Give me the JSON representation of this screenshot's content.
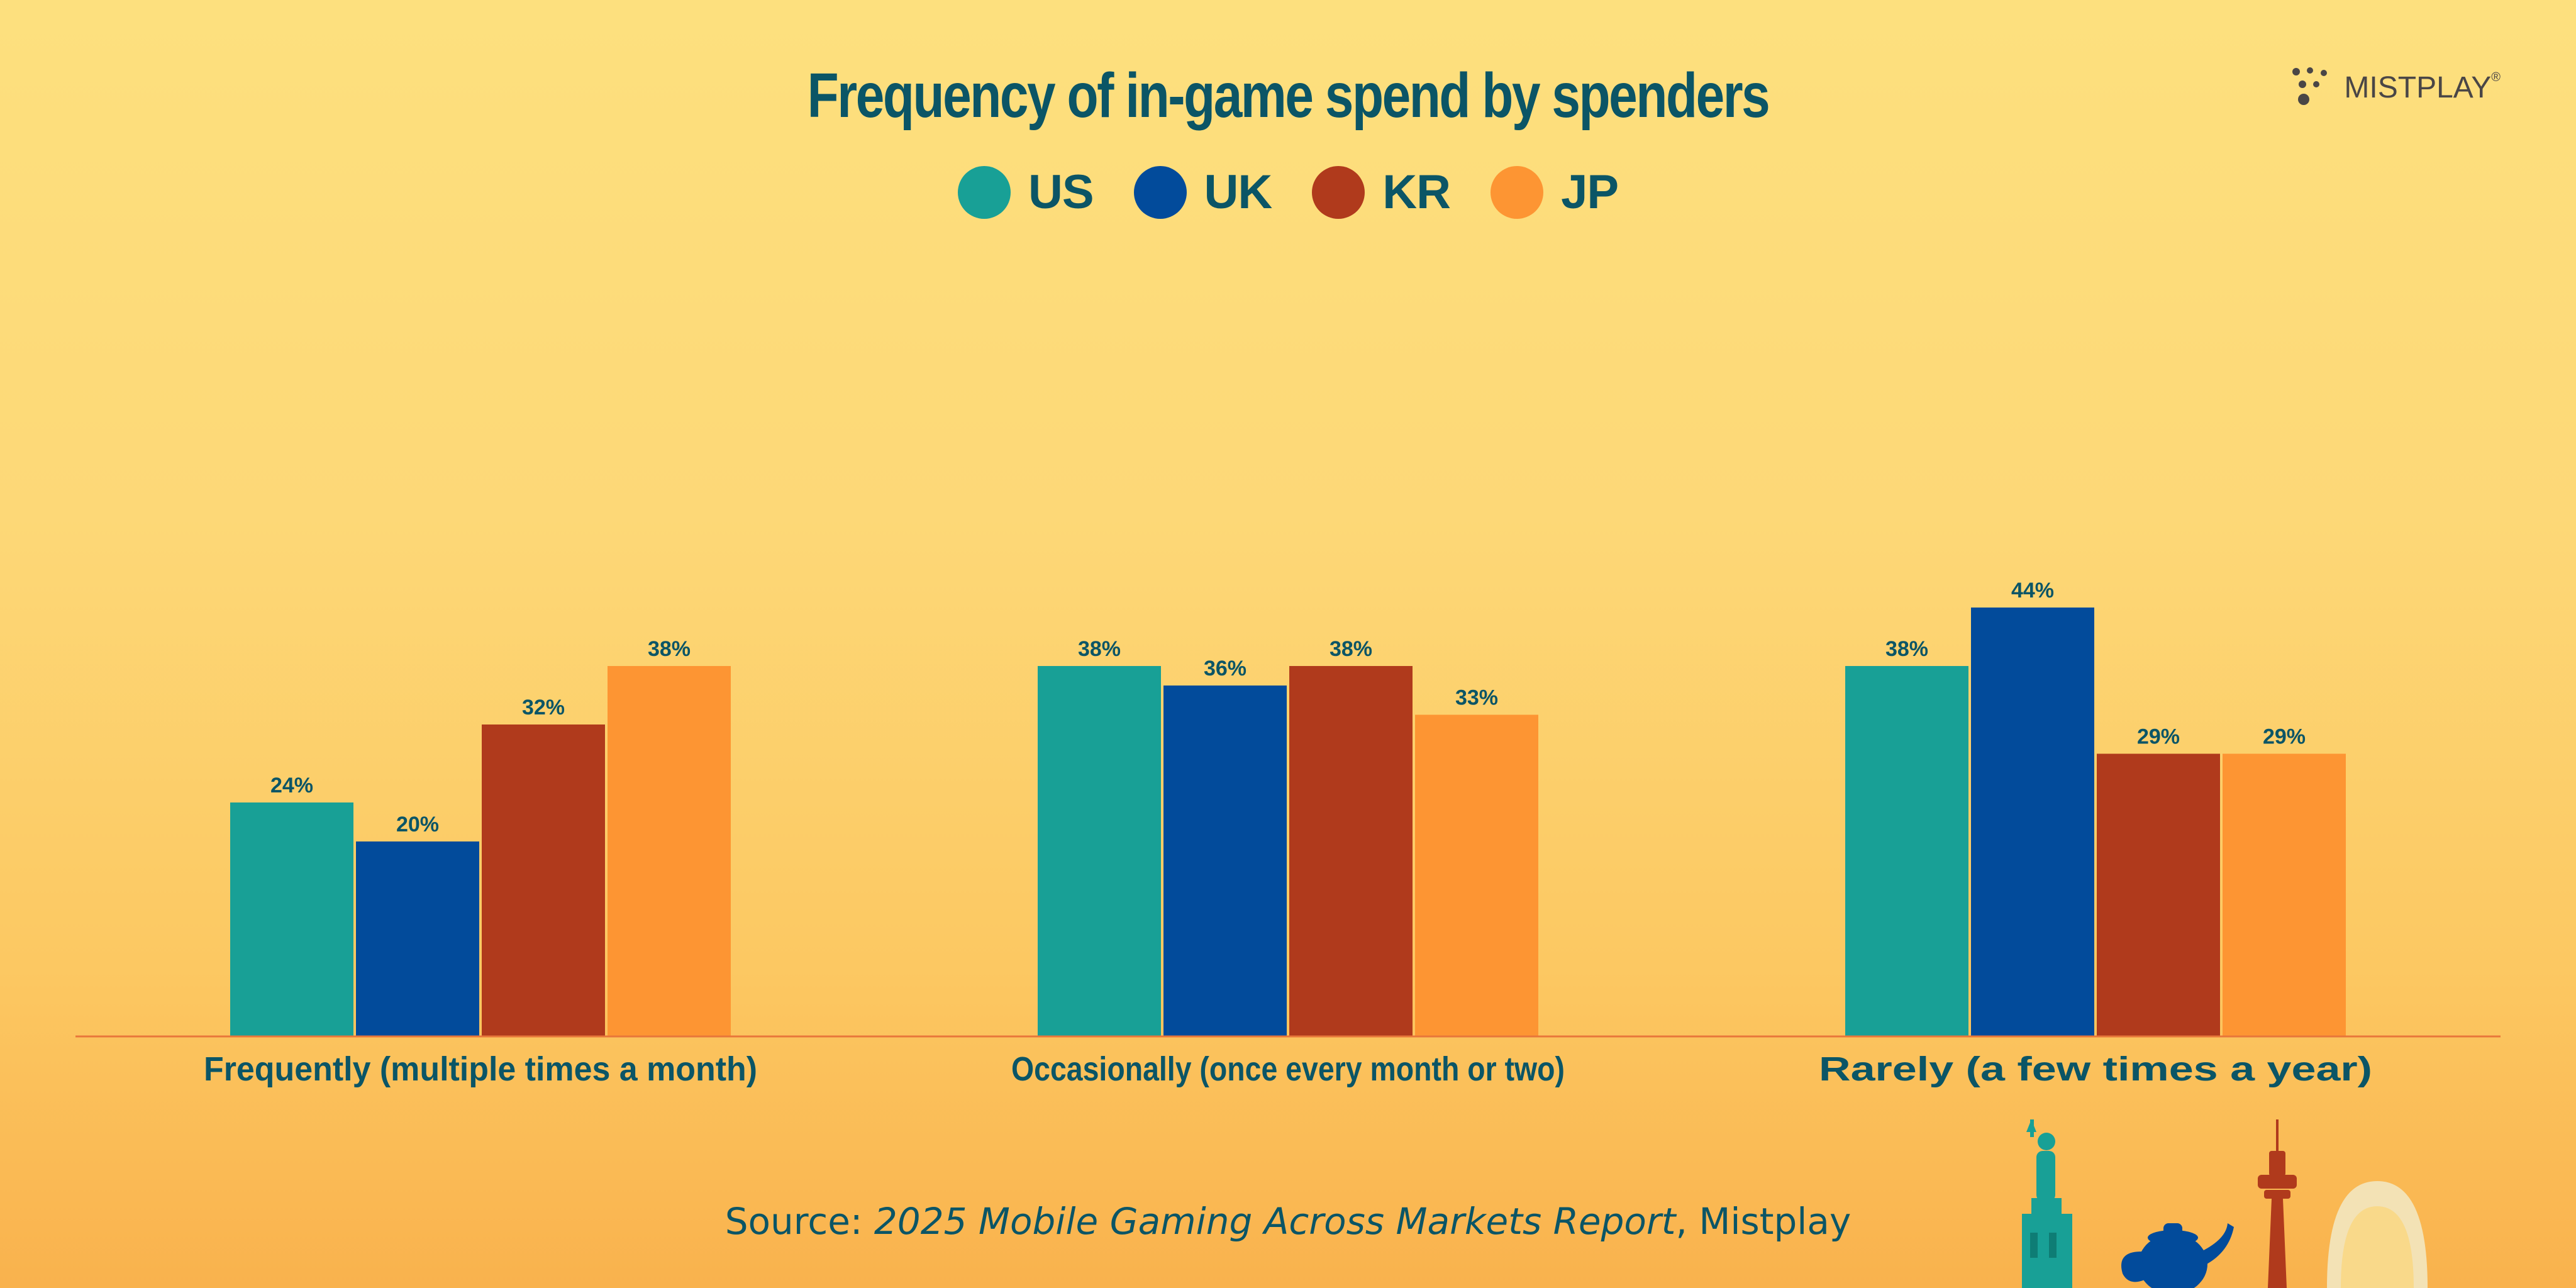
{
  "title": "Frequency of in-game spend by spenders",
  "brand": {
    "name": "MISTPLAY",
    "mark": "®"
  },
  "source": {
    "prefix": "Source: ",
    "report": "2025 Mobile Gaming Across Markets Report",
    "suffix": ", Mistplay"
  },
  "colors": {
    "US": "#18a096",
    "UK": "#024b9b",
    "KR": "#b03a1c",
    "JP": "#fd9533",
    "text": "#0b5566",
    "baseline": "#e8773a"
  },
  "legend": [
    {
      "key": "US",
      "label": "US"
    },
    {
      "key": "UK",
      "label": "UK"
    },
    {
      "key": "KR",
      "label": "KR"
    },
    {
      "key": "JP",
      "label": "JP"
    }
  ],
  "chart_data": {
    "type": "bar",
    "title": "Frequency of in-game spend by spenders",
    "categories": [
      "Frequently (multiple times a month)",
      "Occasionally (once every month or two)",
      "Rarely (a few times a year)"
    ],
    "series": [
      {
        "name": "US",
        "values": [
          24,
          38,
          38
        ]
      },
      {
        "name": "UK",
        "values": [
          20,
          36,
          44
        ]
      },
      {
        "name": "KR",
        "values": [
          32,
          38,
          29
        ]
      },
      {
        "name": "JP",
        "values": [
          38,
          33,
          29
        ]
      }
    ],
    "value_suffix": "%",
    "ylim": [
      0,
      100
    ],
    "grid": false,
    "legend_position": "top-center",
    "xlabel": "",
    "ylabel": ""
  }
}
